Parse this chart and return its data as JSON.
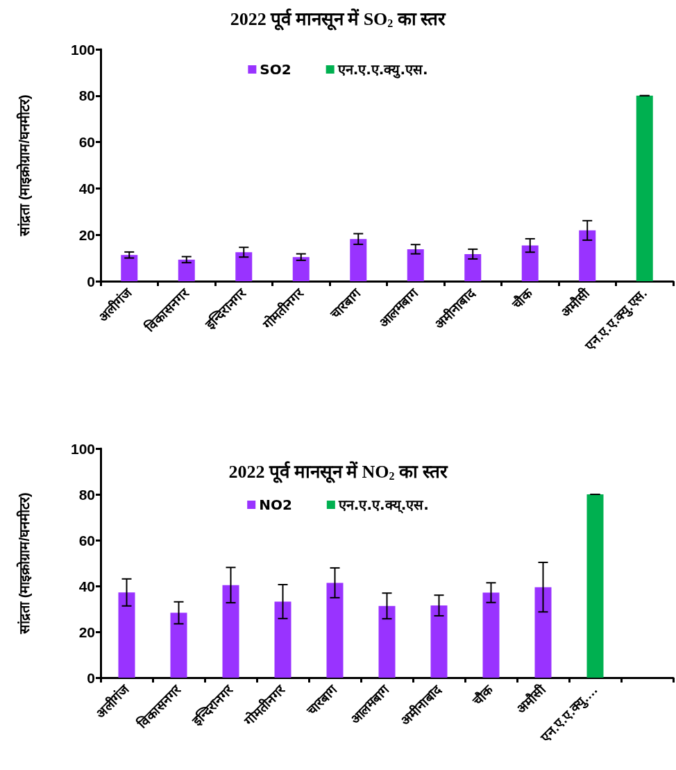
{
  "chart_data": [
    {
      "type": "bar",
      "title": "2022 पूर्व मानसून में SO$_{2}$ का स्तर",
      "ylabel": "सांद्रता (माइक्रोग्राम/घनमीटर)",
      "categories": [
        "अलीगंज",
        "विकासनगर",
        "इन्दिरानगर",
        "गोमतीनगर",
        "चारबाग",
        "आलमबाग",
        "अमीनाबाद",
        "चौक",
        "अमौसी",
        "एन.ए.ए.क्यु.एस."
      ],
      "series": [
        {
          "name": "SO2",
          "color": "#9933ff",
          "values": [
            11.3,
            9.3,
            12.5,
            10.4,
            18.2,
            13.8,
            11.7,
            15.4,
            21.9,
            null
          ],
          "errors": [
            1.3,
            1.3,
            2.1,
            1.4,
            2.3,
            2,
            2.1,
            2.9,
            4.2,
            null
          ]
        },
        {
          "name": "एन.ए.ए.क्यु.एस.",
          "color": "#00b050",
          "values": [
            null,
            null,
            null,
            null,
            null,
            null,
            null,
            null,
            null,
            80
          ],
          "errors": [
            null,
            null,
            null,
            null,
            null,
            null,
            null,
            null,
            null,
            0
          ]
        }
      ],
      "ylim": [
        0,
        100
      ],
      "yticks": [
        0,
        20,
        40,
        60,
        80,
        100
      ],
      "grid": false,
      "legend": "top"
    },
    {
      "type": "bar",
      "title": "2022 पूर्व मानसून में NO$_{2}$ का स्तर",
      "ylabel": "सांद्रता (माइक्रोग्राम/घनमीटर)",
      "categories": [
        "अलीगंज",
        "विकासनगर",
        "इन्दिरानगर",
        "गोमतीनगर",
        "चारबाग",
        "आलमबाग",
        "अमीनाबाद",
        "चौक",
        "अमौसी",
        "एन.ए.ए.क्यु.…",
        null
      ],
      "series": [
        {
          "name": "NO2",
          "color": "#9933ff",
          "values": [
            37.2,
            28.3,
            40.4,
            33.2,
            41.4,
            31.3,
            31.5,
            37.1,
            39.5,
            null,
            null
          ],
          "errors": [
            5.9,
            4.8,
            7.7,
            7.4,
            6.5,
            5.6,
            4.5,
            4.3,
            10.8,
            null,
            null
          ]
        },
        {
          "name": "एन.ए.ए.क्य्.एस.",
          "color": "#00b050",
          "values": [
            null,
            null,
            null,
            null,
            null,
            null,
            null,
            null,
            null,
            80,
            null
          ],
          "errors": [
            null,
            null,
            null,
            null,
            null,
            null,
            null,
            null,
            null,
            0,
            null
          ]
        }
      ],
      "ylim": [
        0,
        100
      ],
      "yticks": [
        0,
        20,
        40,
        60,
        80,
        100
      ],
      "grid": false,
      "legend": "top"
    }
  ]
}
